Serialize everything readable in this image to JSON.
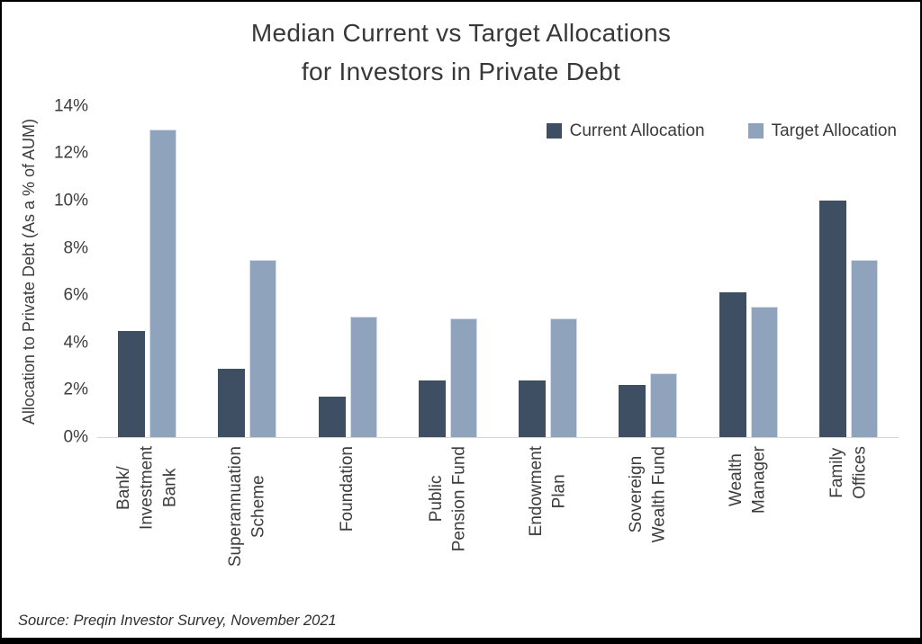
{
  "title": "Median Current vs Target Allocations\nfor Investors in Private Debt",
  "source": "Source: Preqin Investor Survey, November 2021",
  "colors": {
    "current_bar": "#3e4f64",
    "target_bar": "#8fa3bd",
    "axis_line": "#d6d6d6",
    "text": "#3d3d3d",
    "frame_border": "#000000"
  },
  "chart_data": {
    "type": "bar",
    "title": "Median Current vs Target Allocations for Investors in Private Debt",
    "xlabel": "",
    "ylabel": "Allocation to Private Debt (As a % of AUM)",
    "ylim": [
      0,
      14
    ],
    "ytick_values": [
      0,
      2,
      4,
      6,
      8,
      10,
      12,
      14
    ],
    "ytick_labels": [
      "0%",
      "2%",
      "4%",
      "6%",
      "8%",
      "10%",
      "12%",
      "14%"
    ],
    "grid": false,
    "legend_position": "top-right",
    "categories": [
      "Bank/\nInvestment\nBank",
      "Superannuation\nScheme",
      "Foundation",
      "Public\nPension Fund",
      "Endowment\nPlan",
      "Sovereign\nWealth Fund",
      "Wealth\nManager",
      "Family\nOffices"
    ],
    "series": [
      {
        "name": "Current Allocation",
        "color": "#3e4f64",
        "values": [
          4.5,
          2.9,
          1.7,
          2.4,
          2.4,
          2.2,
          6.1,
          10.0
        ]
      },
      {
        "name": "Target Allocation",
        "color": "#8fa3bd",
        "values": [
          13.0,
          7.5,
          5.1,
          5.0,
          5.0,
          2.7,
          5.5,
          7.5
        ]
      }
    ]
  }
}
